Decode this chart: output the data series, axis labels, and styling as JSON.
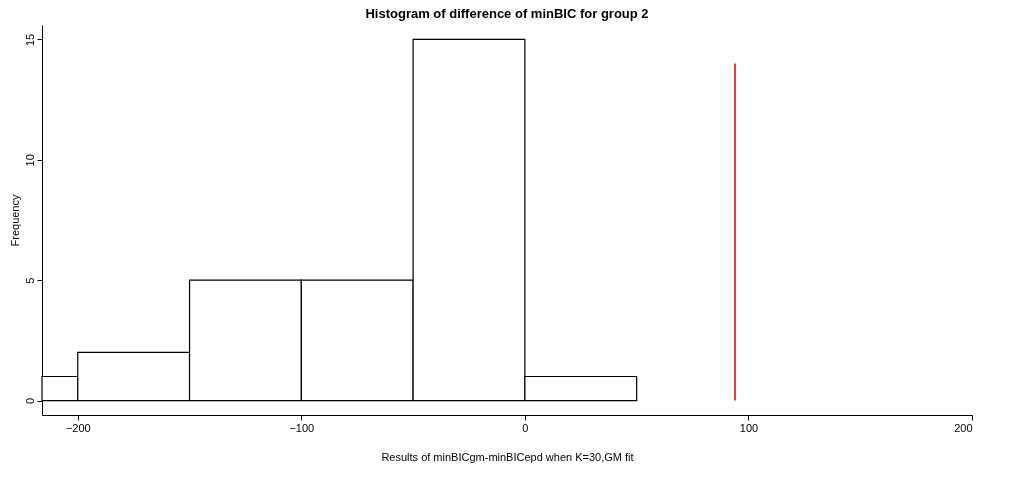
{
  "chart_data": {
    "type": "histogram",
    "title": "Histogram of difference of minBIC for group 2",
    "xlabel": "Results of minBICgm-minBICepd when K=30,GM fit",
    "ylabel": "Frequency",
    "bins": [
      -216,
      -200,
      -150,
      -100,
      -50,
      0,
      50
    ],
    "values": [
      1,
      2,
      5,
      5,
      15,
      1
    ],
    "color": "#ffffff",
    "series": [
      {
        "type": "line",
        "color": "#e8403a",
        "x": [
          94,
          94
        ],
        "values": [
          0,
          14
        ]
      }
    ],
    "xlim": [
      -216,
      200
    ],
    "xticks": [
      -200,
      -100,
      0,
      100,
      200
    ],
    "ylim": [
      -0.6,
      15.6
    ],
    "yticks": [
      0,
      5,
      10,
      15
    ],
    "grid": false
  }
}
